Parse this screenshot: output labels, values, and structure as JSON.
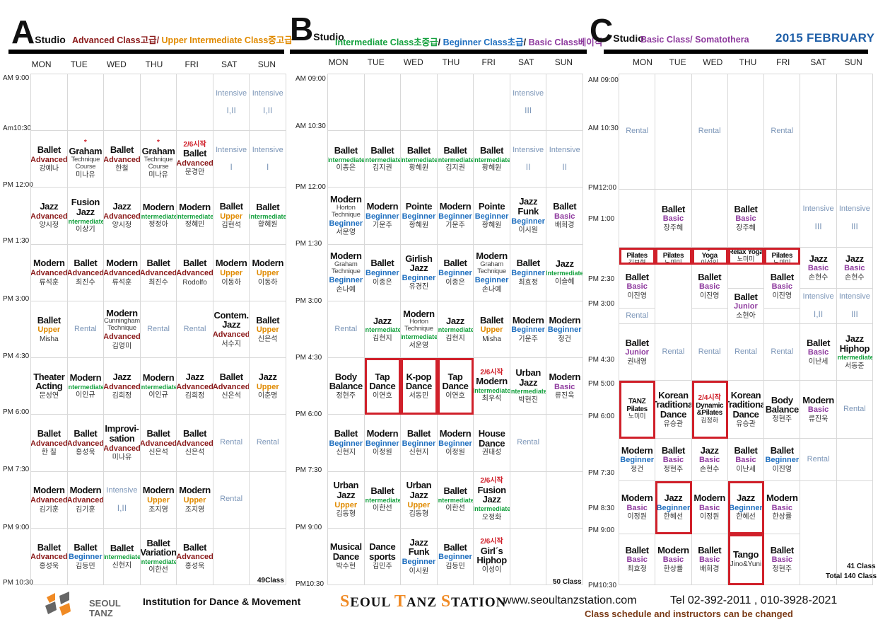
{
  "colors": {
    "Advanced": "#8b1a1a",
    "Upper": "#e08a00",
    "Intermediate": "#12a03c",
    "Beginner": "#1f6fbf",
    "Basic": "#8e3a9e",
    "Junior": "#8e3a9e",
    "Intensive": "#7c96b8",
    "Rental": "#7c96b8",
    "highlight": "#d0202a",
    "titleA": "#8b1a1a"
  },
  "month": "2015 FEBRUARY",
  "days": [
    "MON",
    "TUE",
    "WED",
    "THU",
    "FRI",
    "SAT",
    "SUN"
  ],
  "studios": [
    {
      "letter": "A",
      "word": "Studio",
      "legend": [
        {
          "text": "Advanced Class고급",
          "color": "#8b1a1a"
        },
        {
          "text": "/ ",
          "color": "#8b1a1a"
        },
        {
          "text": "Upper Intermediate Class중고급",
          "color": "#e08a00"
        }
      ],
      "times": [
        "AM 9:00",
        "Am10:30",
        "PM 12:00",
        "PM 1:30",
        "PM 3:00",
        "PM 4:30",
        "PM 6:00",
        "PM 7:30",
        "PM 9:00",
        "PM 10:30"
      ],
      "count": "49Class"
    },
    {
      "letter": "B",
      "word": "Studio",
      "legend": [
        {
          "text": "Intermediate Class초중급",
          "color": "#12a03c"
        },
        {
          "text": "/ ",
          "color": "#111"
        },
        {
          "text": "Beginner Class초급",
          "color": "#1f6fbf"
        },
        {
          "text": "/ ",
          "color": "#111"
        },
        {
          "text": "Basic Class베이직",
          "color": "#8e3a9e"
        }
      ],
      "times": [
        "AM 09:00",
        "AM 10:30",
        "PM 12:00",
        "PM 1:30",
        "PM 3:00",
        "PM 4:30",
        "PM 6:00",
        "PM 7:30",
        "PM 9:00",
        "PM10:30"
      ],
      "count": "50 Class"
    },
    {
      "letter": "C",
      "word": "Studio",
      "legend": [
        {
          "text": "Basic Class/ Somatothera",
          "color": "#8e3a9e"
        }
      ],
      "times": [
        "AM 09:00",
        "AM 10:30",
        "PM12:00",
        "PM 1:00",
        "PM 2:30",
        "PM 3:00",
        "PM 4:30",
        "PM 5:00",
        "PM 6:00",
        "PM 7:30",
        "PM 8:30",
        "PM 9:00",
        "PM10:30"
      ],
      "count": "41 Class",
      "total": "Total 140 Class"
    }
  ],
  "gridA": [
    [
      {
        "t": "",
        "r": 1
      },
      {
        "t": "",
        "r": 1
      },
      {
        "t": "",
        "r": 1
      },
      {
        "t": "",
        "r": 1
      },
      {
        "t": "",
        "r": 1
      },
      {
        "k": "Intensive",
        "n": "I,II"
      },
      {
        "k": "Intensive",
        "n": "I,II"
      }
    ],
    [
      {
        "n": "Ballet",
        "l": "Advanced",
        "i": "강예나"
      },
      {
        "pre": "*",
        "n": "Graham",
        "s": "Technique Course",
        "i": "미나유"
      },
      {
        "n": "Ballet",
        "l": "Advanced",
        "i": "한철"
      },
      {
        "pre": "*",
        "n": "Graham",
        "s": "Technique Course",
        "i": "미나유"
      },
      {
        "pre": "2/6시작",
        "n": "Ballet",
        "l": "Advanced",
        "i": "문경만"
      },
      {
        "k": "Intensive",
        "n": "I"
      },
      {
        "k": "Intensive",
        "n": "I"
      }
    ],
    [
      {
        "n": "Jazz",
        "l": "Advanced",
        "i": "양시정"
      },
      {
        "n": "Fusion Jazz",
        "l": "Intermediate",
        "i": "이상기"
      },
      {
        "n": "Jazz",
        "l": "Advanced",
        "i": "양시정"
      },
      {
        "n": "Modern",
        "l": "Intermediate",
        "i": "정정아"
      },
      {
        "n": "Modern",
        "l": "Intermediate",
        "i": "정혜민"
      },
      {
        "n": "Ballet",
        "l": "Upper",
        "i": "김현석"
      },
      {
        "n": "Ballet",
        "l": "Intermediate",
        "i": "황혜원"
      }
    ],
    [
      {
        "n": "Modern",
        "l": "Advanced",
        "i": "류석훈"
      },
      {
        "n": "Ballet",
        "l": "Advanced",
        "i": "최진수"
      },
      {
        "n": "Modern",
        "l": "Advanced",
        "i": "류석훈"
      },
      {
        "n": "Ballet",
        "l": "Advanced",
        "i": "최진수"
      },
      {
        "n": "Ballet",
        "l": "Advanced",
        "i": "Rodolfo"
      },
      {
        "n": "Modern",
        "l": "Upper",
        "i": "이동하"
      },
      {
        "n": "Modern",
        "l": "Upper",
        "i": "이동하"
      }
    ],
    [
      {
        "n": "Ballet",
        "l": "Upper",
        "i": "Misha"
      },
      {
        "k": "Rental"
      },
      {
        "n": "Modern",
        "s": "Cunningham Technique",
        "l": "Advanced",
        "i": "김영미"
      },
      {
        "k": "Rental"
      },
      {
        "k": "Rental"
      },
      {
        "n": "Contem. Jazz",
        "l": "Advanced",
        "i": "서수지"
      },
      {
        "n": "Ballet",
        "l": "Upper",
        "i": "신은석"
      }
    ],
    [
      {
        "n": "Theater Acting",
        "i": "문성연"
      },
      {
        "n": "Modern",
        "l": "Intermediate",
        "i": "이인규"
      },
      {
        "n": "Jazz",
        "l": "Advanced",
        "i": "김희정"
      },
      {
        "n": "Modern",
        "l": "Intermediate",
        "i": "이인규"
      },
      {
        "n": "Jazz",
        "l": "Advanced",
        "i": "김희정"
      },
      {
        "n": "Ballet",
        "l": "Advanced",
        "i": "신은석"
      },
      {
        "n": "Jazz",
        "l": "Upper",
        "i": "이춘명"
      }
    ],
    [
      {
        "n": "Ballet",
        "l": "Advanced",
        "i": "한 칠"
      },
      {
        "n": "Ballet",
        "l": "Advanced",
        "i": "홍성욱"
      },
      {
        "n": "Improvi-sation",
        "l": "Advanced",
        "i": "미나유"
      },
      {
        "n": "Ballet",
        "l": "Advanced",
        "i": "신은석"
      },
      {
        "n": "Ballet",
        "l": "Advanced",
        "i": "신은석"
      },
      {
        "k": "Rental"
      },
      {
        "k": "Rental"
      }
    ],
    [
      {
        "n": "Modern",
        "l": "Advanced",
        "i": "김기훈"
      },
      {
        "n": "Modern",
        "l": "Advanced",
        "i": "김기훈"
      },
      {
        "k": "Intensive",
        "n": "I,II"
      },
      {
        "n": "Modern",
        "l": "Upper",
        "i": "조지영"
      },
      {
        "n": "Modern",
        "l": "Upper",
        "i": "조지영"
      },
      {
        "k": "Rental"
      },
      {
        "t": ""
      }
    ],
    [
      {
        "n": "Ballet",
        "l": "Advanced",
        "i": "홍성욱"
      },
      {
        "n": "Ballet",
        "l": "Beginner",
        "i": "김등민"
      },
      {
        "n": "Ballet",
        "l": "Intermediate",
        "i": "신현지"
      },
      {
        "n": "Ballet Variation",
        "l": "Intermediate",
        "i": "이한선"
      },
      {
        "n": "Ballet",
        "l": "Advanced",
        "i": "홍성욱"
      },
      {
        "t": ""
      },
      {
        "t": ""
      }
    ]
  ],
  "gridB": [
    [
      {
        "t": ""
      },
      {
        "t": ""
      },
      {
        "t": ""
      },
      {
        "t": ""
      },
      {
        "t": ""
      },
      {
        "k": "Intensive",
        "n": "III"
      },
      {
        "t": ""
      }
    ],
    [
      {
        "n": "Ballet",
        "l": "Intermediate",
        "i": "이종은"
      },
      {
        "n": "Ballet",
        "l": "Intermediate",
        "i": "김지권"
      },
      {
        "n": "Ballet",
        "l": "Intermediate",
        "i": "황혜원"
      },
      {
        "n": "Ballet",
        "l": "Intermediate",
        "i": "김지권"
      },
      {
        "n": "Ballet",
        "l": "Intermediate",
        "i": "황혜원"
      },
      {
        "k": "Intensive",
        "n": "II"
      },
      {
        "k": "Intensive",
        "n": "II"
      }
    ],
    [
      {
        "n": "Modern",
        "s": "Horton Technique",
        "l": "Beginner",
        "i": "서운영"
      },
      {
        "n": "Modern",
        "l": "Beginner",
        "i": "기운주"
      },
      {
        "n": "Pointe",
        "l": "Beginner",
        "i": "황혜원"
      },
      {
        "n": "Modern",
        "l": "Beginner",
        "i": "기운주"
      },
      {
        "n": "Pointe",
        "l": "Beginner",
        "i": "황혜원"
      },
      {
        "n": "Jazz Funk",
        "l": "Beginner",
        "i": "이시원"
      },
      {
        "n": "Ballet",
        "l": "Basic",
        "i": "배희경"
      }
    ],
    [
      {
        "n": "Modern",
        "s": "Graham Technique",
        "l": "Beginner",
        "i": "손나예"
      },
      {
        "n": "Ballet",
        "l": "Beginner",
        "i": "이종은"
      },
      {
        "n": "Girlish Jazz",
        "l": "Beginner",
        "i": "유경진"
      },
      {
        "n": "Ballet",
        "l": "Beginner",
        "i": "이종은"
      },
      {
        "n": "Modern",
        "s": "Graham Technique",
        "l": "Beginner",
        "i": "손나예"
      },
      {
        "n": "Ballet",
        "l": "Beginner",
        "i": "최효정"
      },
      {
        "n": "Jazz",
        "l": "Intermediate",
        "i": "이슬혜"
      }
    ],
    [
      {
        "k": "Rental"
      },
      {
        "n": "Jazz",
        "l": "Intermediate",
        "i": "김현지"
      },
      {
        "n": "Modern",
        "s": "Horton Technique",
        "l": "Intermediate",
        "i": "서운영"
      },
      {
        "n": "Jazz",
        "l": "Intermediate",
        "i": "김현지"
      },
      {
        "n": "Ballet",
        "l": "Upper",
        "i": "Misha"
      },
      {
        "n": "Modern",
        "l": "Beginner",
        "i": "기운주"
      },
      {
        "n": "Modern",
        "l": "Beginner",
        "i": "정건"
      }
    ],
    [
      {
        "n": "Body Balance",
        "i": "정현주"
      },
      {
        "n": "Tap Dance",
        "i": "이연호",
        "h": 1
      },
      {
        "n": "K-pop Dance",
        "i": "서동민",
        "h": 1
      },
      {
        "n": "Tap Dance",
        "i": "이연호",
        "h": 1
      },
      {
        "pre": "2/6시작",
        "n": "Modern",
        "l": "Intermediate",
        "i": "최우석"
      },
      {
        "n": "Urban Jazz",
        "l": "Intermediate",
        "i": "박현진"
      },
      {
        "n": "Modern",
        "l": "Basic",
        "i": "류진욱"
      }
    ],
    [
      {
        "n": "Ballet",
        "l": "Beginner",
        "i": "신현지"
      },
      {
        "n": "Modern",
        "l": "Beginner",
        "i": "이정원"
      },
      {
        "n": "Ballet",
        "l": "Beginner",
        "i": "신현지"
      },
      {
        "n": "Modern",
        "l": "Beginner",
        "i": "이정원"
      },
      {
        "n": "House Dance",
        "i": "권태성"
      },
      {
        "k": "Rental"
      },
      {
        "t": ""
      }
    ],
    [
      {
        "n": "Urban Jazz",
        "l": "Upper",
        "i": "김동형"
      },
      {
        "n": "Ballet",
        "l": "Intermediate",
        "i": "이한선"
      },
      {
        "n": "Urban Jazz",
        "l": "Upper",
        "i": "김동형"
      },
      {
        "n": "Ballet",
        "l": "Intermediate",
        "i": "이한선"
      },
      {
        "pre": "2/6시작",
        "n": "Fusion Jazz",
        "l": "Intermediate",
        "i": "오정화"
      },
      {
        "t": ""
      },
      {
        "t": ""
      }
    ],
    [
      {
        "n": "Musical Dance",
        "i": "박수현"
      },
      {
        "n": "Dance sports",
        "i": "김민주"
      },
      {
        "n": "Jazz Funk",
        "l": "Beginner",
        "i": "이시원"
      },
      {
        "n": "Ballet",
        "l": "Beginner",
        "i": "김등민"
      },
      {
        "pre": "2/6시작",
        "n": "Girl´s Hiphop",
        "i": "이성이"
      },
      {
        "t": ""
      },
      {
        "t": ""
      }
    ]
  ],
  "gridC": [
    {
      "c": 1,
      "r": "1 / span 2",
      "k": "Rental"
    },
    {
      "c": 2,
      "r": "1 / span 2",
      "t": ""
    },
    {
      "c": 3,
      "r": "1 / span 2",
      "k": "Rental"
    },
    {
      "c": 4,
      "r": "1 / span 2",
      "t": ""
    },
    {
      "c": 5,
      "r": "1 / span 2",
      "k": "Rental"
    },
    {
      "c": 6,
      "r": "1 / span 2",
      "t": ""
    },
    {
      "c": 7,
      "r": "1 / span 2",
      "t": ""
    },
    {
      "c": 1,
      "r": "3 / span 2",
      "t": ""
    },
    {
      "c": 2,
      "r": "3 / span 2",
      "n": "Ballet",
      "l": "Basic",
      "i": "장주혜"
    },
    {
      "c": 3,
      "r": "3 / span 2",
      "t": ""
    },
    {
      "c": 4,
      "r": "3 / span 2",
      "n": "Ballet",
      "l": "Basic",
      "i": "장주혜"
    },
    {
      "c": 5,
      "r": "3 / span 2",
      "t": ""
    },
    {
      "c": 6,
      "r": "3 / span 2",
      "k": "Intensive",
      "n": "III"
    },
    {
      "c": 7,
      "r": "3 / span 2",
      "k": "Intensive",
      "n": "III"
    },
    {
      "c": 1,
      "r": "5",
      "n": "Modern Pilates",
      "i": "김보현",
      "h": 1,
      "sm": 1
    },
    {
      "c": 2,
      "r": "5",
      "n": "TANZ Pilates",
      "i": "노미미",
      "h": 1,
      "sm": 1
    },
    {
      "c": 3,
      "r": "5",
      "n": "Vinyasa Yoga",
      "i": "이성인",
      "h": 1,
      "sm": 1
    },
    {
      "c": 4,
      "r": "5",
      "n": "Relax Yoga",
      "i": "노미미",
      "h": 1,
      "sm": 1
    },
    {
      "c": 5,
      "r": "5",
      "n": "TANZ Pilates",
      "i": "노미미",
      "h": 1,
      "sm": 1
    },
    {
      "c": 6,
      "r": "5 / span 2",
      "n": "Jazz",
      "l": "Basic",
      "i": "손현수"
    },
    {
      "c": 7,
      "r": "5 / span 2",
      "n": "Jazz",
      "l": "Basic",
      "i": "손현수"
    },
    {
      "c": 1,
      "r": "6 / span 2",
      "n": "Ballet",
      "l": "Basic",
      "i": "이진영"
    },
    {
      "c": 2,
      "r": "6 / span 3",
      "t": ""
    },
    {
      "c": 3,
      "r": "6 / span 2",
      "n": "Ballet",
      "l": "Basic",
      "i": "이진영"
    },
    {
      "c": 4,
      "r": "6",
      "t": ""
    },
    {
      "c": 5,
      "r": "6 / span 2",
      "n": "Ballet",
      "l": "Basic",
      "i": "이진영"
    },
    {
      "c": 6,
      "r": "7 / span 2",
      "k": "Intensive",
      "n": "I,II"
    },
    {
      "c": 7,
      "r": "7 / span 2",
      "k": "Intensive",
      "n": "III"
    },
    {
      "c": 4,
      "r": "7 / span 2",
      "n": "Ballet",
      "l": "Junior",
      "i": "소현아"
    },
    {
      "c": 1,
      "r": "8",
      "k": "Rental"
    },
    {
      "c": 3,
      "r": "8",
      "t": ""
    },
    {
      "c": 5,
      "r": "8",
      "t": ""
    },
    {
      "c": 1,
      "r": "9 / span 2",
      "n": "Ballet",
      "l": "Junior",
      "i": "권내영"
    },
    {
      "c": 2,
      "r": "9 / span 2",
      "k": "Rental"
    },
    {
      "c": 3,
      "r": "9 / span 2",
      "k": "Rental"
    },
    {
      "c": 4,
      "r": "9 / span 2",
      "k": "Rental"
    },
    {
      "c": 5,
      "r": "9 / span 2",
      "k": "Rental"
    },
    {
      "c": 6,
      "r": "9 / span 2",
      "n": "Ballet",
      "l": "Basic",
      "i": "이난세"
    },
    {
      "c": 7,
      "r": "9 / span 2",
      "n": "Jazz Hiphop",
      "l": "Intermediate",
      "i": "서동준"
    },
    {
      "c": 1,
      "r": "11",
      "n": "TANZ Pilates",
      "i": "노미미",
      "h": 1,
      "sm": 1
    },
    {
      "c": 2,
      "r": "11",
      "n": "Korean Traditional Dance",
      "i": "유승관"
    },
    {
      "c": 3,
      "r": "11",
      "pre": "2/4시작",
      "n": "Dynamic &Pilates",
      "i": "김정하",
      "h": 1,
      "sm": 1
    },
    {
      "c": 4,
      "r": "11",
      "n": "Korean Traditional Dance",
      "i": "유승관"
    },
    {
      "c": 5,
      "r": "11",
      "n": "Body Balance",
      "i": "정현주"
    },
    {
      "c": 6,
      "r": "11",
      "n": "Modern",
      "l": "Basic",
      "i": "류진욱"
    },
    {
      "c": 7,
      "r": "11",
      "k": "Rental"
    },
    {
      "c": 1,
      "r": "12",
      "n": "Modern",
      "l": "Beginner",
      "i": "정건"
    },
    {
      "c": 2,
      "r": "12",
      "n": "Ballet",
      "l": "Basic",
      "i": "정현주"
    },
    {
      "c": 3,
      "r": "12",
      "n": "Jazz",
      "l": "Basic",
      "i": "손현수"
    },
    {
      "c": 4,
      "r": "12",
      "n": "Ballet",
      "l": "Basic",
      "i": "이난세"
    },
    {
      "c": 5,
      "r": "12",
      "n": "Ballet",
      "l": "Beginner",
      "i": "이진영"
    },
    {
      "c": 6,
      "r": "12",
      "k": "Rental"
    },
    {
      "c": 7,
      "r": "12",
      "t": ""
    },
    {
      "c": 1,
      "r": "13",
      "n": "Modern",
      "l": "Basic",
      "i": "이정원"
    },
    {
      "c": 2,
      "r": "13",
      "n": "Jazz",
      "l": "Beginner",
      "i": "한혜선",
      "h": 1
    },
    {
      "c": 3,
      "r": "13",
      "n": "Modern",
      "l": "Basic",
      "i": "이정원"
    },
    {
      "c": 4,
      "r": "13",
      "n": "Jazz",
      "l": "Beginner",
      "i": "한혜선",
      "h": 1
    },
    {
      "c": 5,
      "r": "13",
      "n": "Modern",
      "l": "Basic",
      "i": "한상률"
    },
    {
      "c": 6,
      "r": "13 / span 2",
      "t": ""
    },
    {
      "c": 7,
      "r": "13 / span 2",
      "t": ""
    },
    {
      "c": 1,
      "r": "14",
      "n": "Ballet",
      "l": "Basic",
      "i": "최효정"
    },
    {
      "c": 2,
      "r": "14",
      "n": "Modern",
      "l": "Basic",
      "i": "한상률"
    },
    {
      "c": 3,
      "r": "14",
      "n": "Ballet",
      "l": "Basic",
      "i": "배희경"
    },
    {
      "c": 4,
      "r": "14",
      "n": "Tango",
      "i": "Jino&Yuni",
      "h": 1
    },
    {
      "c": 5,
      "r": "14",
      "n": "Ballet",
      "l": "Basic",
      "i": "정현주"
    }
  ],
  "footer": {
    "logo_line1": "SEOUL",
    "logo_line2": "TANZ",
    "institution": "Institution for Dance & Movement",
    "brand": "SEOUL TANZ STATION",
    "website": "www.seoultanzstation.com",
    "tel": "Tel 02-392-2011 , 010-3928-2021",
    "note": "Class schedule and instructors can be changed"
  }
}
